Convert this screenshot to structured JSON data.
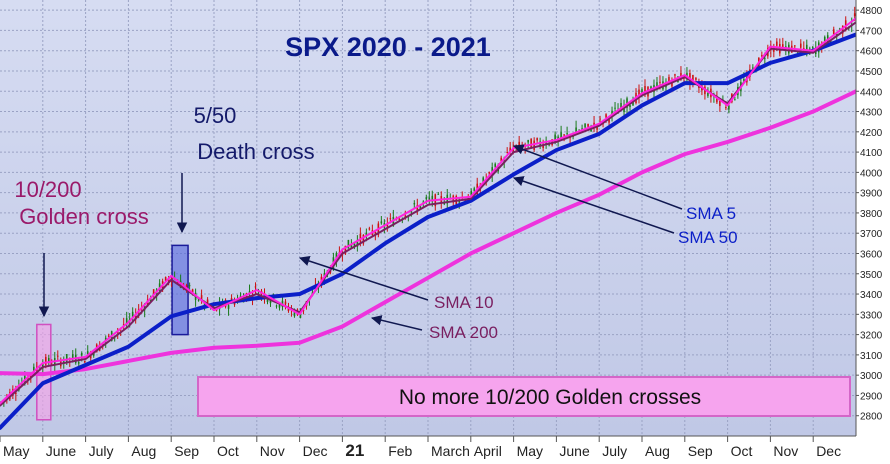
{
  "chart_data": {
    "type": "line",
    "title": "SPX 2020 - 2021",
    "xlabel": "",
    "ylabel": "",
    "ylim": [
      2700,
      4850
    ],
    "y_ticks": [
      2800,
      2900,
      3000,
      3100,
      3200,
      3300,
      3400,
      3500,
      3600,
      3700,
      3800,
      3900,
      4000,
      4100,
      4200,
      4300,
      4400,
      4500,
      4600,
      4700,
      4800
    ],
    "x_ticks": [
      "May",
      "June",
      "July",
      "Aug",
      "Sep",
      "Oct",
      "Nov",
      "Dec",
      "21",
      "Feb",
      "March",
      "April",
      "May",
      "June",
      "July",
      "Aug",
      "Sep",
      "Oct",
      "Nov",
      "Dec"
    ],
    "grid": true,
    "colors": {
      "background": "#c8d0ea",
      "grid": "#9aa2c4",
      "sma5": "#ff22dd",
      "sma10": "#7a1f60",
      "sma50": "#0b1fc8",
      "sma200": "#ee33dd",
      "candle_up": "#1a7a1a",
      "candle_down": "#cc1111",
      "title": "#0a1a8a",
      "annotation_golden": "#9a1a6a",
      "annotation_death": "#141a6a",
      "highlight_golden_fill": "#f9a0e8",
      "highlight_death_fill": "#5566dd",
      "banner_fill": "#f6a4ee"
    },
    "series": [
      {
        "name": "SMA 5",
        "x": [
          0,
          1,
          2,
          3,
          4,
          5,
          6,
          7,
          8,
          9,
          10,
          11,
          12,
          13,
          14,
          15,
          16,
          17,
          18,
          19,
          20
        ],
        "values": [
          2860,
          3060,
          3090,
          3260,
          3490,
          3320,
          3420,
          3300,
          3620,
          3740,
          3860,
          3880,
          4120,
          4160,
          4240,
          4390,
          4480,
          4330,
          4620,
          4600,
          4760
        ]
      },
      {
        "name": "SMA 10",
        "x": [
          0,
          1,
          2,
          3,
          4,
          5,
          6,
          7,
          8,
          9,
          10,
          11,
          12,
          13,
          14,
          15,
          16,
          17,
          18,
          19,
          20
        ],
        "values": [
          2850,
          3040,
          3080,
          3240,
          3470,
          3330,
          3400,
          3310,
          3600,
          3720,
          3840,
          3870,
          4100,
          4150,
          4230,
          4380,
          4470,
          4340,
          4610,
          4590,
          4740
        ]
      },
      {
        "name": "SMA 50",
        "x": [
          0,
          1,
          2,
          3,
          4,
          5,
          6,
          7,
          8,
          9,
          10,
          11,
          12,
          13,
          14,
          15,
          16,
          17,
          18,
          19,
          20
        ],
        "values": [
          2740,
          2960,
          3050,
          3140,
          3290,
          3350,
          3380,
          3400,
          3500,
          3650,
          3780,
          3860,
          3990,
          4110,
          4190,
          4330,
          4440,
          4440,
          4540,
          4600,
          4680
        ]
      },
      {
        "name": "SMA 200",
        "x": [
          0,
          1,
          2,
          3,
          4,
          5,
          6,
          7,
          8,
          9,
          10,
          11,
          12,
          13,
          14,
          15,
          16,
          17,
          18,
          19,
          20
        ],
        "values": [
          3010,
          3005,
          3030,
          3070,
          3110,
          3135,
          3145,
          3160,
          3240,
          3360,
          3480,
          3600,
          3700,
          3800,
          3890,
          4000,
          4090,
          4150,
          4220,
          4300,
          4400
        ]
      }
    ],
    "annotations": [
      {
        "text": "10/200",
        "group": "golden"
      },
      {
        "text": "Golden cross",
        "group": "golden"
      },
      {
        "text": "5/50",
        "group": "death"
      },
      {
        "text": "Death cross",
        "group": "death"
      },
      {
        "text": "SMA 5",
        "group": "sma5"
      },
      {
        "text": "SMA 50",
        "group": "sma50"
      },
      {
        "text": "SMA 10",
        "group": "sma10"
      },
      {
        "text": "SMA 200",
        "group": "sma200"
      },
      {
        "text": "No more 10/200 Golden crosses",
        "group": "banner"
      }
    ]
  }
}
